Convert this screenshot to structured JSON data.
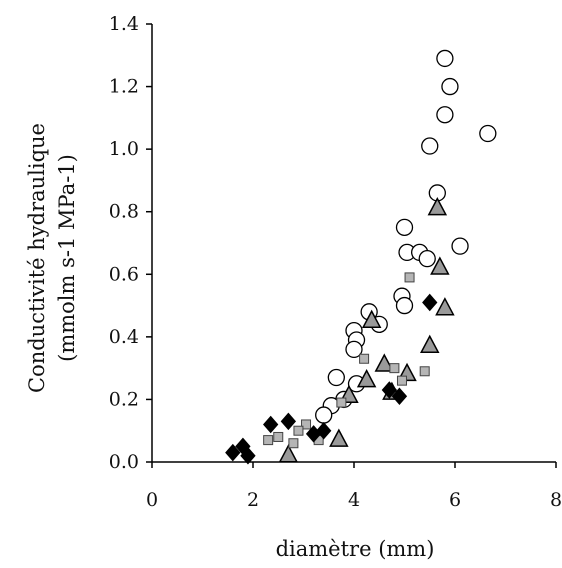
{
  "chart_data": {
    "type": "scatter",
    "title": "",
    "xlabel": "diamètre (mm)",
    "ylabel_line1": "Conductivité hydraulique",
    "ylabel_line2": "(mmolm s-1 MPa-1)",
    "xlim": [
      0,
      8
    ],
    "ylim": [
      0,
      1.4
    ],
    "x_ticks": [
      "0",
      "2",
      "4",
      "6",
      "8"
    ],
    "x_tick_values": [
      0,
      2,
      4,
      6,
      8
    ],
    "y_ticks": [
      "0.0",
      "0.2",
      "0.4",
      "0.6",
      "0.8",
      "1.0",
      "1.2",
      "1.4"
    ],
    "y_tick_values": [
      0,
      0.2,
      0.4,
      0.6,
      0.8,
      1.0,
      1.2,
      1.4
    ],
    "grid": false,
    "legend": "none",
    "series": [
      {
        "marker": "circle-open",
        "color": "#000000",
        "points": [
          [
            5.8,
            1.29
          ],
          [
            5.9,
            1.2
          ],
          [
            5.8,
            1.11
          ],
          [
            6.65,
            1.05
          ],
          [
            5.5,
            1.01
          ],
          [
            5.65,
            0.86
          ],
          [
            5.0,
            0.75
          ],
          [
            6.1,
            0.69
          ],
          [
            5.05,
            0.67
          ],
          [
            5.3,
            0.67
          ],
          [
            5.45,
            0.65
          ],
          [
            4.95,
            0.53
          ],
          [
            5.0,
            0.5
          ],
          [
            4.3,
            0.48
          ],
          [
            4.5,
            0.44
          ],
          [
            4.0,
            0.42
          ],
          [
            4.05,
            0.39
          ],
          [
            4.0,
            0.36
          ],
          [
            3.65,
            0.27
          ],
          [
            4.05,
            0.25
          ],
          [
            3.8,
            0.2
          ],
          [
            3.55,
            0.18
          ],
          [
            3.4,
            0.15
          ]
        ]
      },
      {
        "marker": "triangle",
        "color": "#9a9a9a",
        "points": [
          [
            5.65,
            0.81
          ],
          [
            5.7,
            0.62
          ],
          [
            5.8,
            0.49
          ],
          [
            4.35,
            0.45
          ],
          [
            5.5,
            0.37
          ],
          [
            4.6,
            0.31
          ],
          [
            5.05,
            0.28
          ],
          [
            4.25,
            0.26
          ],
          [
            4.75,
            0.22
          ],
          [
            3.9,
            0.21
          ],
          [
            3.7,
            0.07
          ],
          [
            2.7,
            0.02
          ]
        ]
      },
      {
        "marker": "square",
        "color": "#b5b5b5",
        "points": [
          [
            5.1,
            0.59
          ],
          [
            4.2,
            0.33
          ],
          [
            4.8,
            0.3
          ],
          [
            5.4,
            0.29
          ],
          [
            4.95,
            0.26
          ],
          [
            3.75,
            0.19
          ],
          [
            3.05,
            0.12
          ],
          [
            2.9,
            0.1
          ],
          [
            2.5,
            0.08
          ],
          [
            2.3,
            0.07
          ],
          [
            3.3,
            0.07
          ],
          [
            2.8,
            0.06
          ]
        ]
      },
      {
        "marker": "diamond-filled",
        "color": "#000000",
        "points": [
          [
            5.5,
            0.51
          ],
          [
            4.7,
            0.23
          ],
          [
            4.9,
            0.21
          ],
          [
            2.7,
            0.13
          ],
          [
            2.35,
            0.12
          ],
          [
            3.4,
            0.1
          ],
          [
            3.2,
            0.09
          ],
          [
            1.8,
            0.05
          ],
          [
            1.6,
            0.03
          ],
          [
            1.9,
            0.02
          ]
        ]
      }
    ]
  }
}
